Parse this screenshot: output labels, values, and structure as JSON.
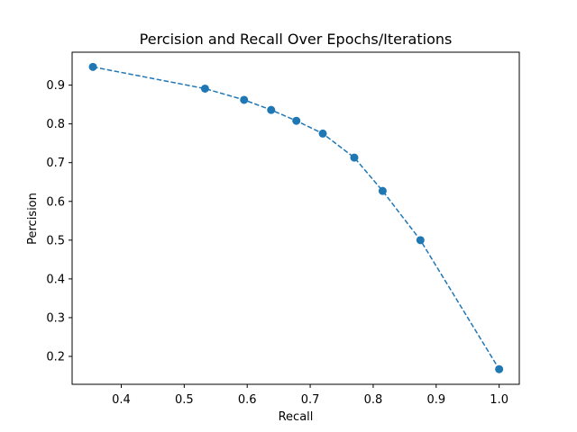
{
  "chart_data": {
    "type": "line",
    "title": "Percision and Recall Over Epochs/Iterations",
    "xlabel": "Recall",
    "ylabel": "Percision",
    "xlim": [
      0.322,
      1.032
    ],
    "ylim": [
      0.128,
      0.985
    ],
    "xticks": [
      0.4,
      0.5,
      0.6,
      0.7,
      0.8,
      0.9,
      1.0
    ],
    "xtick_labels": [
      "0.4",
      "0.5",
      "0.6",
      "0.7",
      "0.8",
      "0.9",
      "1.0"
    ],
    "yticks": [
      0.2,
      0.3,
      0.4,
      0.5,
      0.6,
      0.7,
      0.8,
      0.9
    ],
    "ytick_labels": [
      "0.2",
      "0.3",
      "0.4",
      "0.5",
      "0.6",
      "0.7",
      "0.8",
      "0.9"
    ],
    "grid": false,
    "line_style": "dashed",
    "marker": "circle",
    "color": "#1f77b4",
    "series": [
      {
        "x": [
          0.355,
          0.533,
          0.595,
          0.638,
          0.678,
          0.72,
          0.77,
          0.815,
          0.875,
          1.0
        ],
        "y": [
          0.947,
          0.891,
          0.862,
          0.836,
          0.808,
          0.775,
          0.713,
          0.627,
          0.5,
          0.167
        ]
      }
    ]
  }
}
